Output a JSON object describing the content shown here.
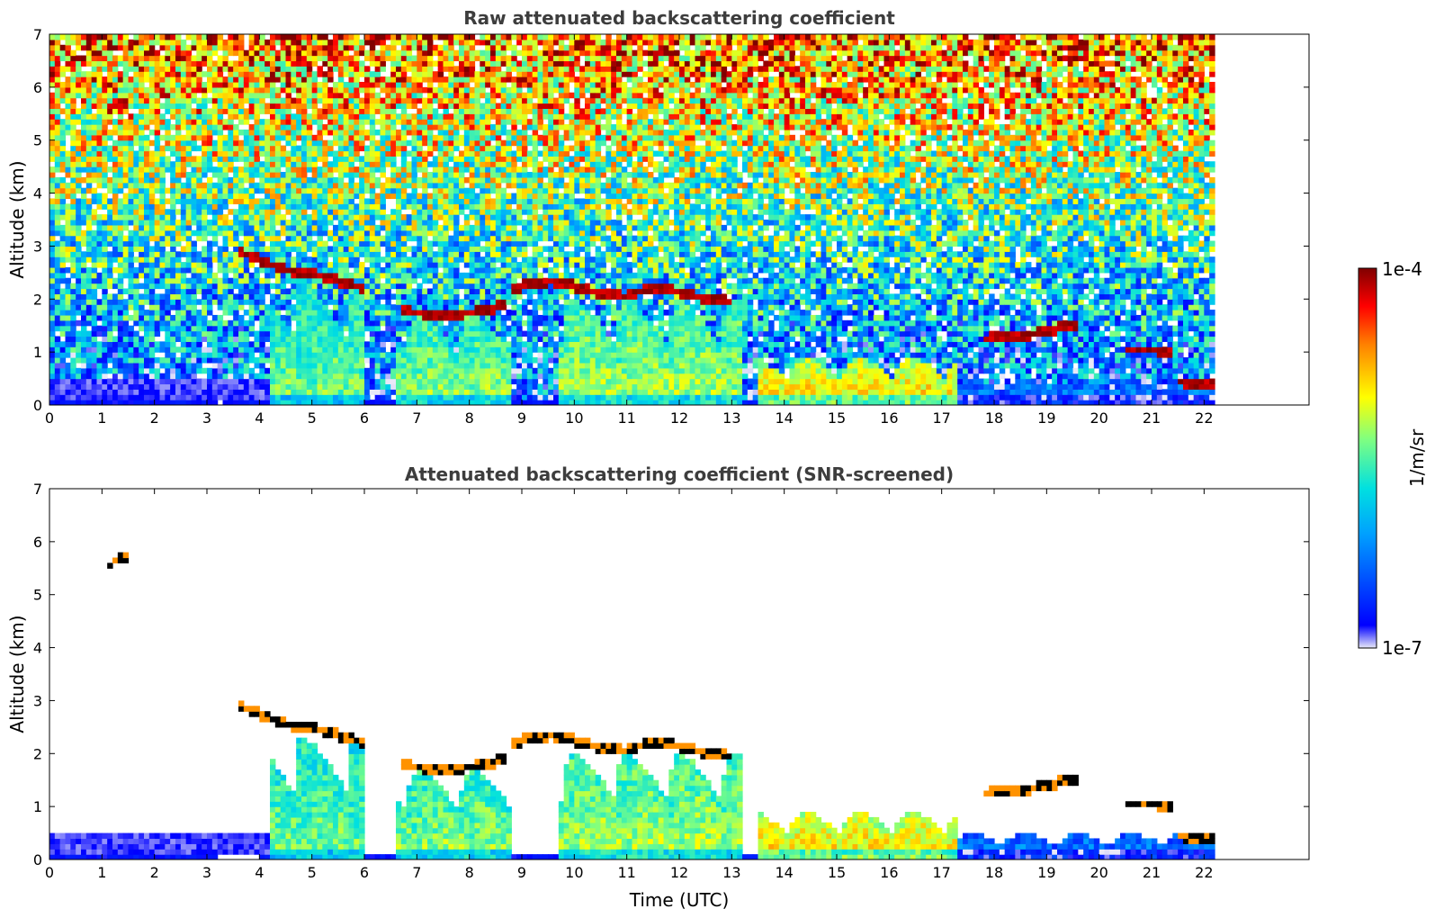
{
  "chart_data": [
    {
      "type": "heatmap",
      "id": "raw",
      "title": "Raw attenuated backscattering coefficient",
      "xlabel": "",
      "ylabel": "Altitude (km)",
      "xlim": [
        0,
        24
      ],
      "ylim": [
        0,
        7
      ],
      "data_x_end": 22.2,
      "x_ticks": [
        0,
        1,
        2,
        3,
        4,
        5,
        6,
        7,
        8,
        9,
        10,
        11,
        12,
        13,
        14,
        15,
        16,
        17,
        18,
        19,
        20,
        21,
        22
      ],
      "y_ticks": [
        0,
        1,
        2,
        3,
        4,
        5,
        6,
        7
      ],
      "grid": false,
      "screened": false,
      "cloud_layers": [
        {
          "t": [
            3.6,
            4.0,
            4.5,
            5.0,
            5.5,
            6.0
          ],
          "h": [
            2.9,
            2.75,
            2.55,
            2.5,
            2.35,
            2.2
          ]
        },
        {
          "t": [
            6.7,
            7.0,
            7.5,
            8.0,
            8.5,
            8.7
          ],
          "h": [
            1.8,
            1.75,
            1.7,
            1.75,
            1.85,
            1.9
          ]
        },
        {
          "t": [
            8.8,
            9.2,
            9.6,
            10.0,
            10.5,
            11.0
          ],
          "h": [
            2.2,
            2.3,
            2.35,
            2.25,
            2.1,
            2.05
          ]
        },
        {
          "t": [
            11.0,
            11.5,
            12.0,
            12.5,
            13.0
          ],
          "h": [
            2.1,
            2.2,
            2.15,
            2.0,
            1.95
          ]
        },
        {
          "t": [
            1.1,
            1.3,
            1.5
          ],
          "h": [
            5.5,
            5.7,
            5.75
          ]
        },
        {
          "t": [
            17.8,
            18.5,
            19.0,
            19.6
          ],
          "h": [
            1.25,
            1.3,
            1.4,
            1.55
          ]
        },
        {
          "t": [
            20.5,
            21.0,
            21.4
          ],
          "h": [
            1.05,
            1.05,
            1.0
          ]
        },
        {
          "t": [
            21.5,
            22.2
          ],
          "h": [
            0.45,
            0.4
          ]
        }
      ],
      "boundary_layer": [
        {
          "t": [
            4.2,
            6.0
          ],
          "h_top": 2.3,
          "level": 0.55
        },
        {
          "t": [
            6.6,
            8.8
          ],
          "h_top": 1.7,
          "level": 0.58
        },
        {
          "t": [
            9.7,
            13.2
          ],
          "h_top": 2.0,
          "level": 0.6
        },
        {
          "t": [
            13.5,
            17.3
          ],
          "h_top": 0.9,
          "level": 0.72
        },
        {
          "t": [
            17.3,
            22.2
          ],
          "h_top": 0.5,
          "level": 0.3
        }
      ]
    },
    {
      "type": "heatmap",
      "id": "screened",
      "title": "Attenuated backscattering coefficient (SNR-screened)",
      "xlabel": "Time (UTC)",
      "ylabel": "Altitude (km)",
      "xlim": [
        0,
        24
      ],
      "ylim": [
        0,
        7
      ],
      "data_x_end": 22.2,
      "x_ticks": [
        0,
        1,
        2,
        3,
        4,
        5,
        6,
        7,
        8,
        9,
        10,
        11,
        12,
        13,
        14,
        15,
        16,
        17,
        18,
        19,
        20,
        21,
        22
      ],
      "y_ticks": [
        0,
        1,
        2,
        3,
        4,
        5,
        6,
        7
      ],
      "grid": false,
      "screened": true
    }
  ],
  "colorbar": {
    "label": "1/m/sr",
    "max_label": "1e-4",
    "min_label": "1e-7",
    "scale": "log",
    "colormap": [
      "#e8e8f8",
      "#0000ff",
      "#00a0ff",
      "#00e0e0",
      "#80ff80",
      "#ffff00",
      "#ff8000",
      "#ff0000",
      "#800000"
    ]
  }
}
